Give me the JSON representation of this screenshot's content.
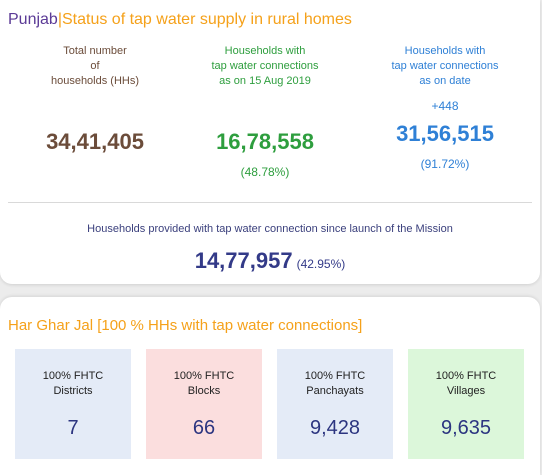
{
  "header": {
    "state": "Punjab",
    "separator": "|",
    "subtitle": "Status of tap water supply in rural homes"
  },
  "stats": {
    "total": {
      "label": "Total number\nof\nhouseholds (HHs)",
      "value": "34,41,405"
    },
    "baseline": {
      "label": "Households with\ntap water connections\nas on 15 Aug 2019",
      "value": "16,78,558",
      "percent": "(48.78%)"
    },
    "current": {
      "label": "Households with\ntap water connections\nas on date",
      "delta": "+448",
      "value": "31,56,515",
      "percent": "(91.72%)"
    }
  },
  "mission": {
    "label": "Households provided with tap water connection since launch of the Mission",
    "value": "14,77,957",
    "percent": "(42.95%)"
  },
  "har_ghar_jal": {
    "title": "Har Ghar Jal [100 % HHs with tap water connections]",
    "tiles": [
      {
        "label": "100% FHTC\nDistricts",
        "value": "7"
      },
      {
        "label": "100% FHTC\nBlocks",
        "value": "66"
      },
      {
        "label": "100% FHTC\nPanchayats",
        "value": "9,428"
      },
      {
        "label": "100% FHTC\nVillages",
        "value": "9,635"
      }
    ]
  },
  "colors": {
    "state": "#5b3a96",
    "accent": "#f5a11a",
    "total": "#6b4c3a",
    "baseline": "#2e9e3e",
    "current": "#2f80d6",
    "mission": "#333a88"
  }
}
